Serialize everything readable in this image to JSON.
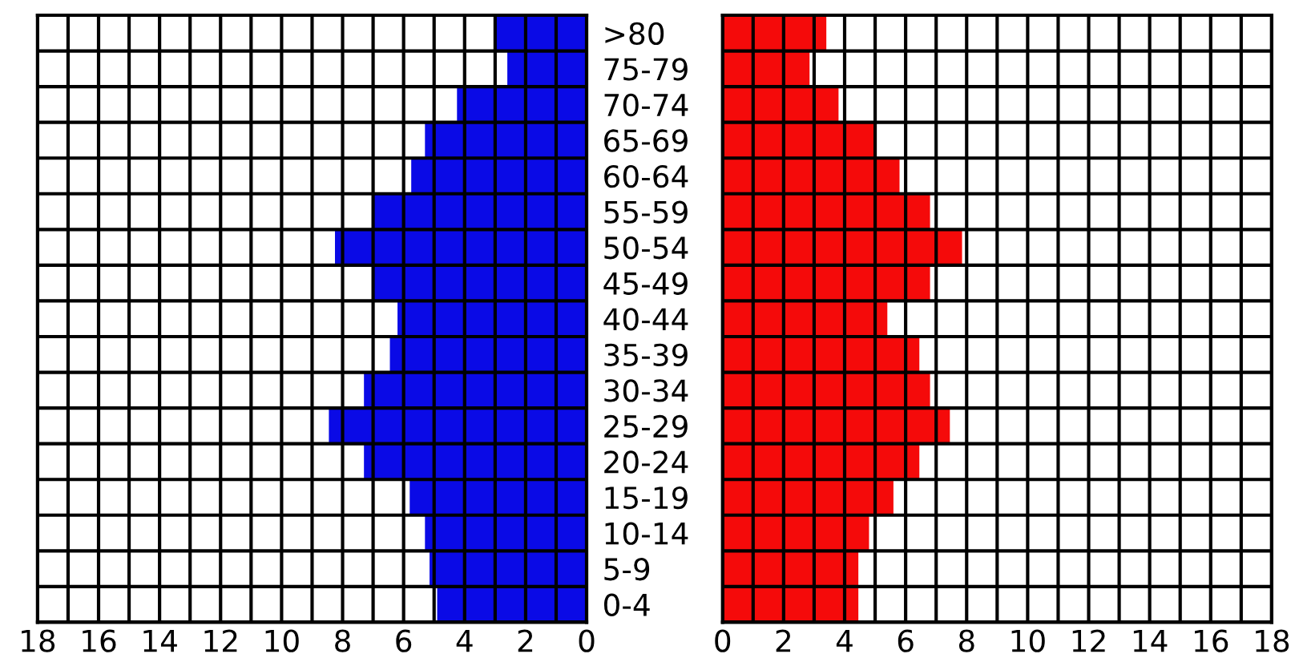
{
  "chart_data": [
    {
      "type": "bar",
      "orientation": "horizontal",
      "grid": true,
      "categories": [
        ">80",
        "75-79",
        "70-74",
        "65-69",
        "60-64",
        "55-59",
        "50-54",
        "45-49",
        "40-44",
        "35-39",
        "30-34",
        "25-29",
        "20-24",
        "15-19",
        "10-14",
        "5-9",
        "0-4"
      ],
      "series": [
        {
          "color": "#0a0ae6",
          "values": [
            3.0,
            2.6,
            4.25,
            5.3,
            5.75,
            7.0,
            8.25,
            7.0,
            6.2,
            6.45,
            7.3,
            8.45,
            7.3,
            5.8,
            5.3,
            5.15,
            4.9
          ]
        }
      ],
      "xlim": [
        18,
        0
      ],
      "xticks": [
        18,
        {
          "value": 17,
          "label": null
        },
        16,
        {
          "value": 15,
          "label": null
        },
        14,
        {
          "value": 13,
          "label": null
        },
        12,
        {
          "value": 11,
          "label": null
        },
        10,
        {
          "value": 9,
          "label": null
        },
        8,
        {
          "value": 7,
          "label": null
        },
        6,
        {
          "value": 5,
          "label": null
        },
        4,
        {
          "value": 3,
          "label": null
        },
        2,
        {
          "value": 1,
          "label": null
        },
        0
      ]
    },
    {
      "type": "bar",
      "orientation": "horizontal",
      "grid": true,
      "categories": [
        null,
        null,
        null,
        null,
        null,
        null,
        null,
        null,
        null,
        null,
        null,
        null,
        null,
        null,
        null,
        null,
        null
      ],
      "series": [
        {
          "color": "#f50a0a",
          "values": [
            3.4,
            2.85,
            3.8,
            4.95,
            5.8,
            6.8,
            7.85,
            6.8,
            5.4,
            6.45,
            6.8,
            7.45,
            6.45,
            5.6,
            4.8,
            4.45,
            4.45
          ]
        }
      ],
      "xlim": [
        0,
        18
      ],
      "xticks": [
        0,
        {
          "value": 1,
          "label": null
        },
        2,
        {
          "value": 3,
          "label": null
        },
        4,
        {
          "value": 5,
          "label": null
        },
        6,
        {
          "value": 7,
          "label": null
        },
        8,
        {
          "value": 9,
          "label": null
        },
        10,
        {
          "value": 11,
          "label": null
        },
        12,
        {
          "value": 13,
          "label": null
        },
        14,
        {
          "value": 15,
          "label": null
        },
        16,
        {
          "value": 17,
          "label": null
        },
        18
      ]
    }
  ]
}
